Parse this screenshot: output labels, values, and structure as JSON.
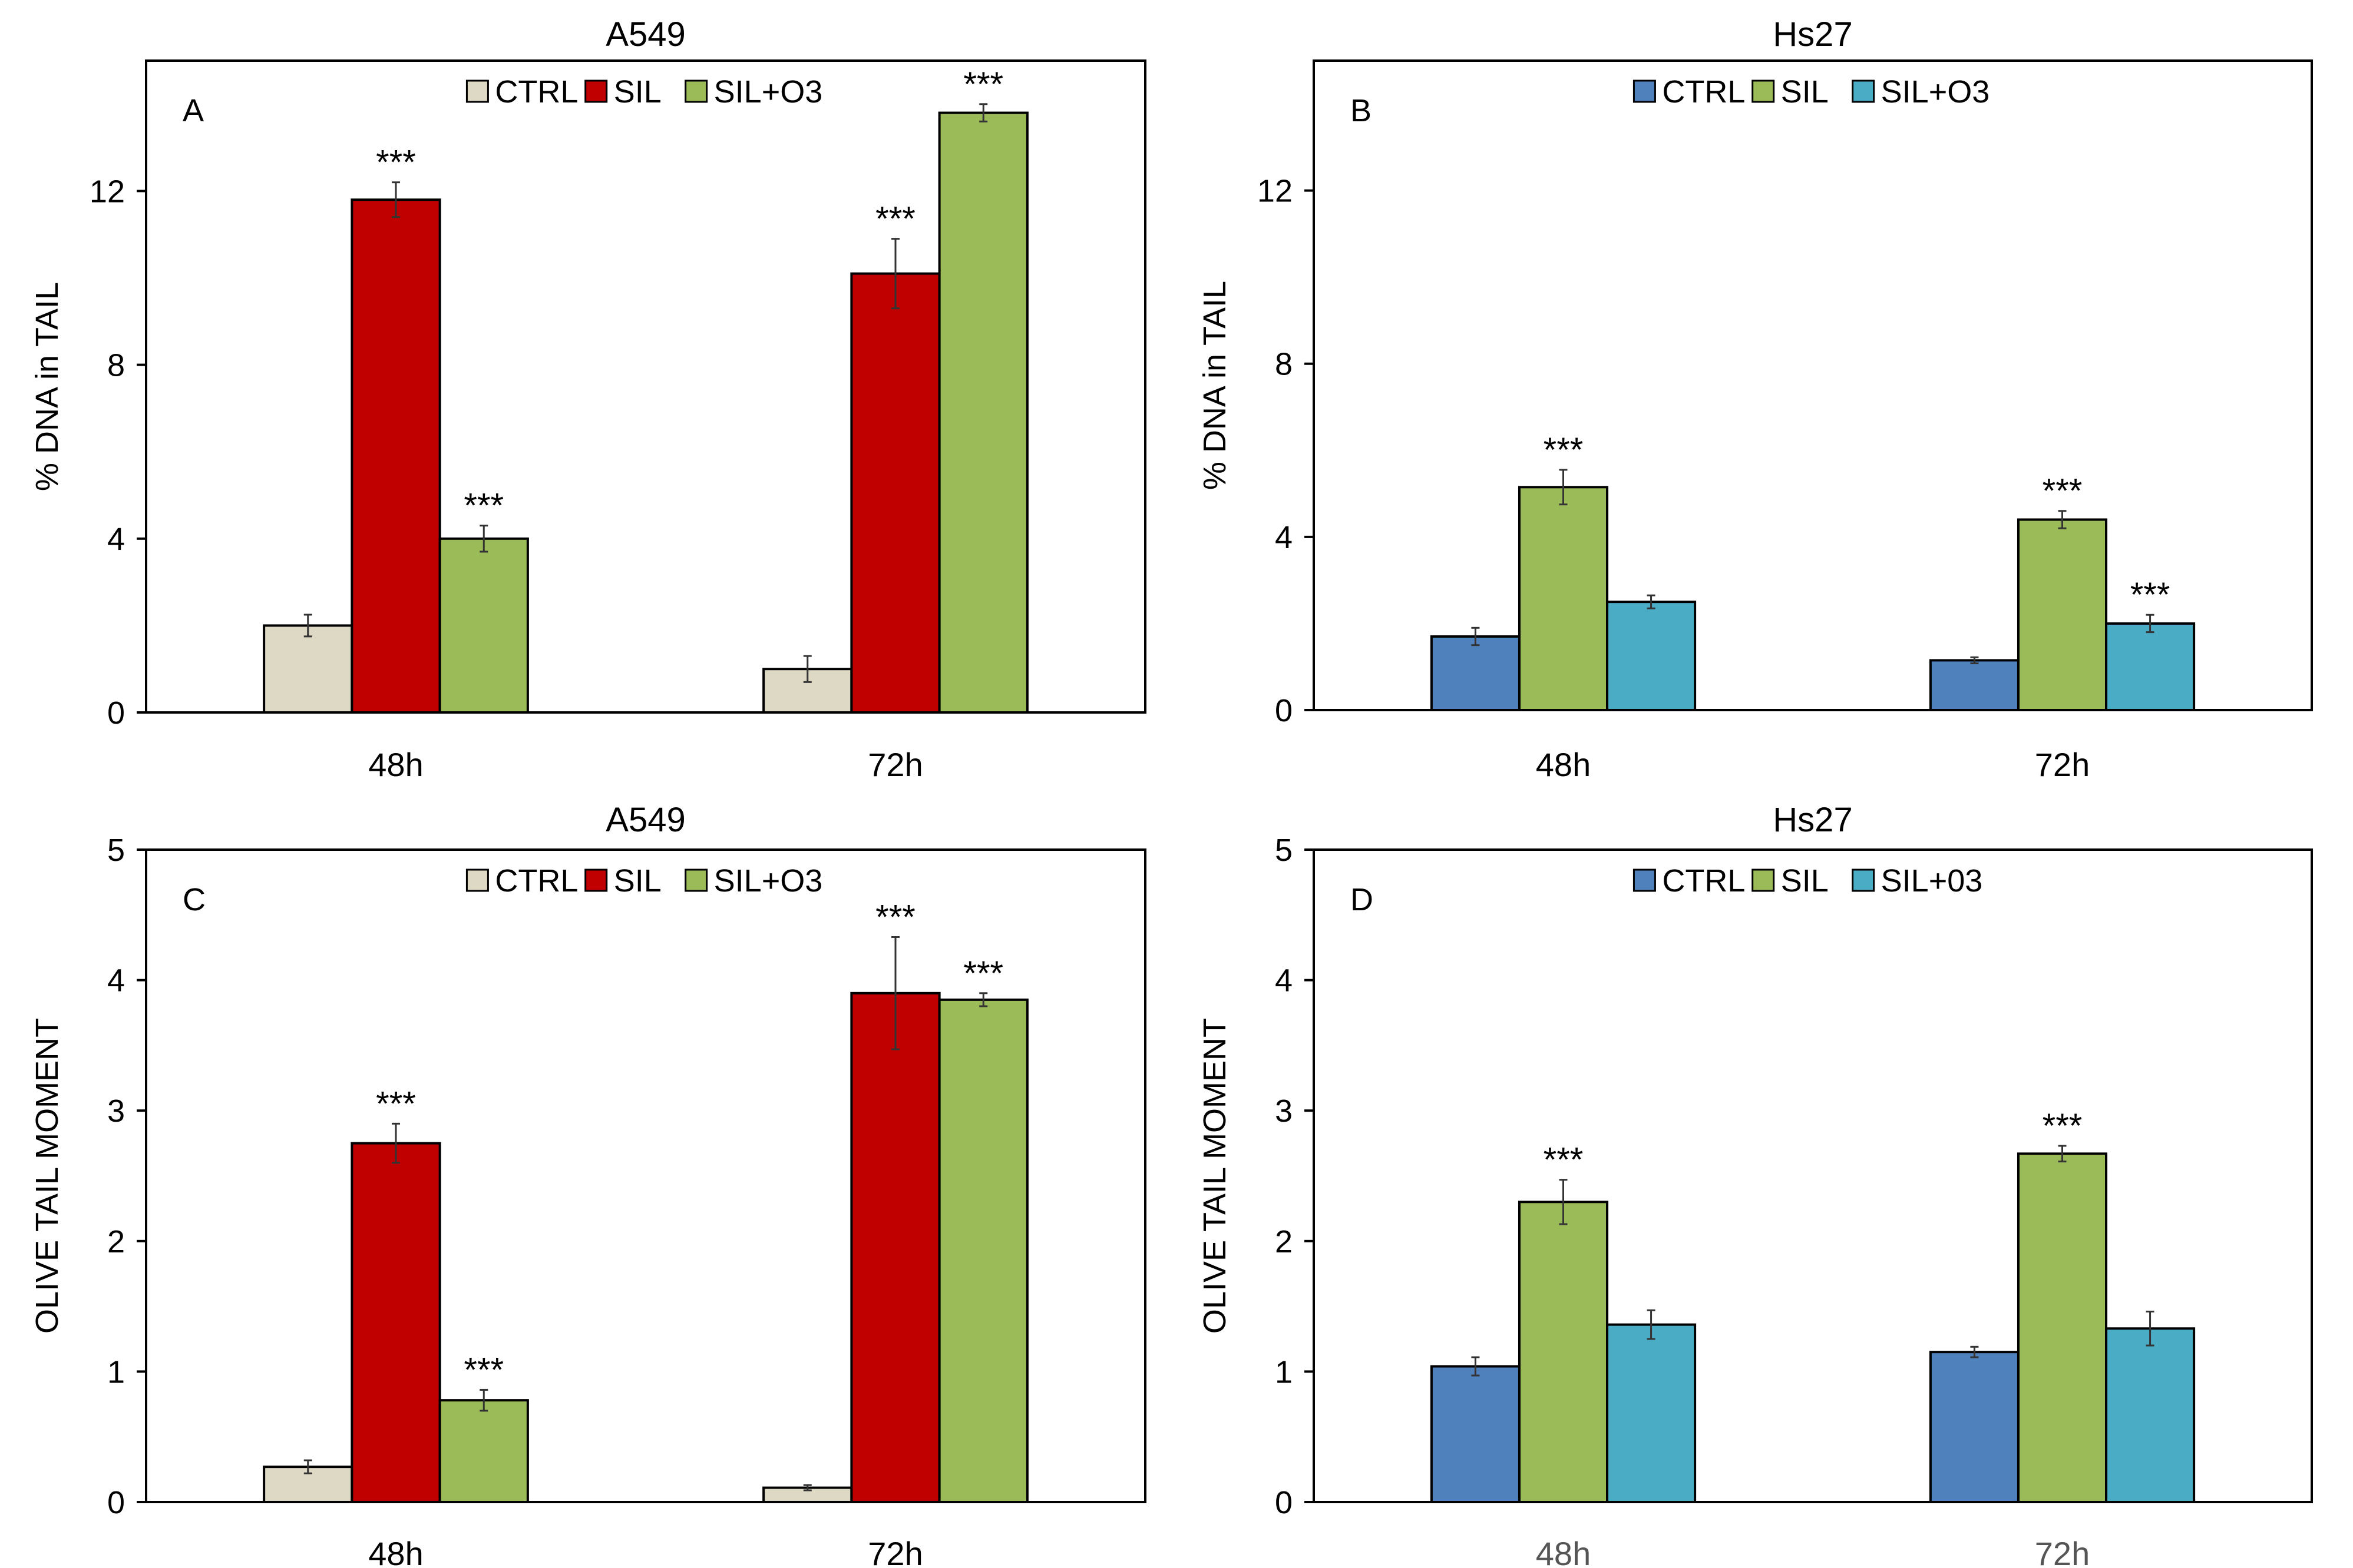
{
  "chart_data": [
    {
      "type": "bar",
      "panel_label": "A",
      "title": "A549",
      "xlabel": "",
      "ylabel": "% DNA in TAIL",
      "ylim": [
        0,
        15
      ],
      "yticks": [
        0,
        4,
        8,
        12
      ],
      "categories": [
        "48h",
        "72h"
      ],
      "legend": "top-center",
      "grid": false,
      "series": [
        {
          "name": "CTRL",
          "color": "#DDD9C4",
          "values": [
            2.0,
            1.0
          ],
          "errors": [
            0.25,
            0.3
          ],
          "stars": [
            "",
            ""
          ]
        },
        {
          "name": "SIL",
          "color": "#C00000",
          "values": [
            11.8,
            10.1
          ],
          "errors": [
            0.4,
            0.8
          ],
          "stars": [
            "***",
            "***"
          ]
        },
        {
          "name": "SIL+O3",
          "color": "#9BBB59",
          "values": [
            4.0,
            13.8
          ],
          "errors": [
            0.3,
            0.2
          ],
          "stars": [
            "***",
            "***"
          ]
        }
      ]
    },
    {
      "type": "bar",
      "panel_label": "B",
      "title": "Hs27",
      "xlabel": "",
      "ylabel": "% DNA in TAIL",
      "ylim": [
        0,
        15
      ],
      "yticks": [
        0,
        4,
        8,
        12
      ],
      "categories": [
        "48h",
        "72h"
      ],
      "legend": "top-center",
      "grid": false,
      "series": [
        {
          "name": "CTRL",
          "color": "#4F81BD",
          "values": [
            1.7,
            1.15
          ],
          "errors": [
            0.2,
            0.07
          ],
          "stars": [
            "",
            ""
          ]
        },
        {
          "name": "SIL",
          "color": "#9BBB59",
          "values": [
            5.15,
            4.4
          ],
          "errors": [
            0.4,
            0.2
          ],
          "stars": [
            "***",
            "***"
          ]
        },
        {
          "name": "SIL+O3",
          "color": "#4BACC6",
          "values": [
            2.5,
            2.0
          ],
          "errors": [
            0.15,
            0.2
          ],
          "stars": [
            "",
            "***"
          ]
        }
      ]
    },
    {
      "type": "bar",
      "panel_label": "C",
      "title": "A549",
      "xlabel": "",
      "ylabel": "OLIVE  TAIL MOMENT",
      "ylim": [
        0,
        5
      ],
      "yticks": [
        0,
        1,
        2,
        3,
        4,
        5
      ],
      "categories": [
        "48h",
        "72h"
      ],
      "legend": "top-center",
      "grid": false,
      "series": [
        {
          "name": "CTRL",
          "color": "#DDD9C4",
          "values": [
            0.27,
            0.11
          ],
          "errors": [
            0.05,
            0.02
          ],
          "stars": [
            "",
            ""
          ]
        },
        {
          "name": "SIL",
          "color": "#C00000",
          "values": [
            2.75,
            3.9
          ],
          "errors": [
            0.15,
            0.43
          ],
          "stars": [
            "***",
            "***"
          ]
        },
        {
          "name": "SIL+O3",
          "color": "#9BBB59",
          "values": [
            0.78,
            3.85
          ],
          "errors": [
            0.08,
            0.05
          ],
          "stars": [
            "***",
            "***"
          ]
        }
      ]
    },
    {
      "type": "bar",
      "panel_label": "D",
      "title": "Hs27",
      "xlabel": "",
      "ylabel": "OLIVE TAIL MOMENT",
      "ylim": [
        0,
        5
      ],
      "yticks": [
        0,
        1,
        2,
        3,
        4,
        5
      ],
      "categories": [
        "48h",
        "72h"
      ],
      "legend": "top-center",
      "grid": false,
      "series": [
        {
          "name": "CTRL",
          "color": "#4F81BD",
          "values": [
            1.04,
            1.15
          ],
          "errors": [
            0.07,
            0.04
          ],
          "stars": [
            "",
            ""
          ]
        },
        {
          "name": "SIL",
          "color": "#9BBB59",
          "values": [
            2.3,
            2.67
          ],
          "errors": [
            0.17,
            0.06
          ],
          "stars": [
            "***",
            "***"
          ]
        },
        {
          "name": "SIL+03",
          "color": "#4BACC6",
          "values": [
            1.36,
            1.33
          ],
          "errors": [
            0.11,
            0.13
          ],
          "stars": [
            "",
            ""
          ]
        }
      ]
    }
  ]
}
